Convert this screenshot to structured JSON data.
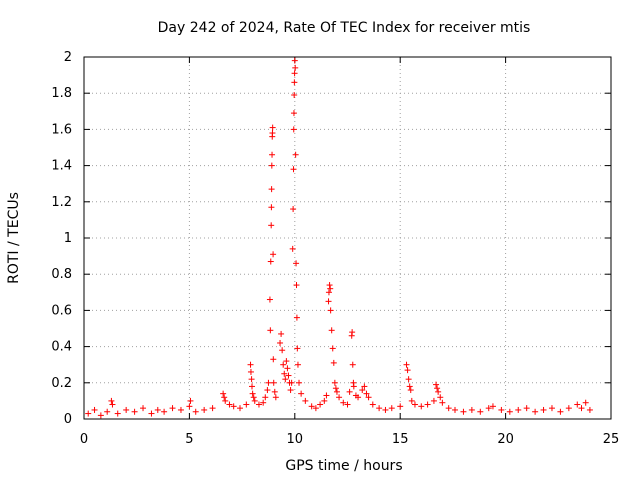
{
  "chart_data": {
    "type": "scatter",
    "title": "Day 242 of 2024, Rate Of TEC Index for receiver mtis",
    "xlabel": "GPS time / hours",
    "ylabel": "ROTI / TECUs",
    "xlim": [
      0,
      25
    ],
    "ylim": [
      0,
      2
    ],
    "xticks": [
      "0",
      "5",
      "10",
      "15",
      "20",
      "25"
    ],
    "yticks": [
      "0",
      "0.2",
      "0.4",
      "0.6",
      "0.8",
      "1",
      "1.2",
      "1.4",
      "1.6",
      "1.8",
      "2"
    ],
    "grid": true,
    "marker": "plus",
    "marker_color": "#ff0000",
    "series": [
      {
        "points": [
          [
            0.2,
            0.03
          ],
          [
            0.5,
            0.05
          ],
          [
            0.8,
            0.02
          ],
          [
            1.1,
            0.04
          ],
          [
            1.3,
            0.1
          ],
          [
            1.35,
            0.08
          ],
          [
            1.6,
            0.03
          ],
          [
            2.0,
            0.05
          ],
          [
            2.4,
            0.04
          ],
          [
            2.8,
            0.06
          ],
          [
            3.2,
            0.03
          ],
          [
            3.5,
            0.05
          ],
          [
            3.8,
            0.04
          ],
          [
            4.2,
            0.06
          ],
          [
            4.6,
            0.05
          ],
          [
            5.0,
            0.07
          ],
          [
            5.05,
            0.1
          ],
          [
            5.3,
            0.04
          ],
          [
            5.7,
            0.05
          ],
          [
            6.1,
            0.06
          ],
          [
            6.6,
            0.14
          ],
          [
            6.65,
            0.12
          ],
          [
            6.7,
            0.1
          ],
          [
            6.9,
            0.08
          ],
          [
            7.1,
            0.07
          ],
          [
            7.4,
            0.06
          ],
          [
            7.7,
            0.08
          ],
          [
            7.9,
            0.3
          ],
          [
            7.92,
            0.26
          ],
          [
            7.95,
            0.22
          ],
          [
            7.97,
            0.18
          ],
          [
            8.0,
            0.14
          ],
          [
            8.05,
            0.12
          ],
          [
            8.1,
            0.1
          ],
          [
            8.3,
            0.08
          ],
          [
            8.5,
            0.09
          ],
          [
            8.6,
            0.12
          ],
          [
            8.7,
            0.16
          ],
          [
            8.75,
            0.2
          ],
          [
            8.82,
            0.66
          ],
          [
            8.84,
            0.49
          ],
          [
            8.86,
            0.87
          ],
          [
            8.88,
            1.07
          ],
          [
            8.89,
            1.17
          ],
          [
            8.9,
            1.27
          ],
          [
            8.91,
            1.4
          ],
          [
            8.92,
            1.46
          ],
          [
            8.93,
            1.56
          ],
          [
            8.94,
            1.58
          ],
          [
            8.95,
            1.61
          ],
          [
            8.97,
            0.91
          ],
          [
            8.98,
            0.33
          ],
          [
            9.0,
            0.2
          ],
          [
            9.05,
            0.15
          ],
          [
            9.1,
            0.12
          ],
          [
            9.3,
            0.42
          ],
          [
            9.35,
            0.47
          ],
          [
            9.4,
            0.38
          ],
          [
            9.45,
            0.3
          ],
          [
            9.5,
            0.25
          ],
          [
            9.55,
            0.22
          ],
          [
            9.6,
            0.32
          ],
          [
            9.65,
            0.28
          ],
          [
            9.7,
            0.24
          ],
          [
            9.75,
            0.2
          ],
          [
            9.8,
            0.16
          ],
          [
            9.85,
            0.2
          ],
          [
            9.9,
            0.94
          ],
          [
            9.92,
            1.16
          ],
          [
            9.94,
            1.38
          ],
          [
            9.95,
            1.6
          ],
          [
            9.96,
            1.69
          ],
          [
            9.97,
            1.79
          ],
          [
            9.98,
            1.86
          ],
          [
            9.99,
            1.91
          ],
          [
            10.0,
            1.98
          ],
          [
            10.02,
            1.94
          ],
          [
            10.04,
            1.46
          ],
          [
            10.06,
            0.86
          ],
          [
            10.08,
            0.74
          ],
          [
            10.1,
            0.56
          ],
          [
            10.12,
            0.39
          ],
          [
            10.15,
            0.3
          ],
          [
            10.2,
            0.2
          ],
          [
            10.3,
            0.14
          ],
          [
            10.5,
            0.1
          ],
          [
            10.8,
            0.07
          ],
          [
            11.0,
            0.06
          ],
          [
            11.2,
            0.08
          ],
          [
            11.4,
            0.1
          ],
          [
            11.5,
            0.13
          ],
          [
            11.6,
            0.65
          ],
          [
            11.62,
            0.7
          ],
          [
            11.65,
            0.74
          ],
          [
            11.68,
            0.72
          ],
          [
            11.7,
            0.6
          ],
          [
            11.75,
            0.49
          ],
          [
            11.8,
            0.39
          ],
          [
            11.85,
            0.31
          ],
          [
            11.9,
            0.2
          ],
          [
            11.95,
            0.17
          ],
          [
            12.0,
            0.15
          ],
          [
            12.1,
            0.12
          ],
          [
            12.3,
            0.09
          ],
          [
            12.5,
            0.08
          ],
          [
            12.6,
            0.15
          ],
          [
            12.7,
            0.46
          ],
          [
            12.72,
            0.48
          ],
          [
            12.75,
            0.3
          ],
          [
            12.78,
            0.2
          ],
          [
            12.8,
            0.18
          ],
          [
            12.9,
            0.13
          ],
          [
            13.0,
            0.12
          ],
          [
            13.2,
            0.16
          ],
          [
            13.3,
            0.18
          ],
          [
            13.4,
            0.14
          ],
          [
            13.5,
            0.12
          ],
          [
            13.7,
            0.08
          ],
          [
            14.0,
            0.06
          ],
          [
            14.3,
            0.05
          ],
          [
            14.6,
            0.06
          ],
          [
            15.0,
            0.07
          ],
          [
            15.3,
            0.3
          ],
          [
            15.35,
            0.27
          ],
          [
            15.4,
            0.22
          ],
          [
            15.45,
            0.18
          ],
          [
            15.5,
            0.16
          ],
          [
            15.55,
            0.1
          ],
          [
            15.7,
            0.08
          ],
          [
            16.0,
            0.07
          ],
          [
            16.3,
            0.08
          ],
          [
            16.6,
            0.1
          ],
          [
            16.7,
            0.19
          ],
          [
            16.75,
            0.17
          ],
          [
            16.8,
            0.15
          ],
          [
            16.9,
            0.12
          ],
          [
            17.0,
            0.09
          ],
          [
            17.3,
            0.06
          ],
          [
            17.6,
            0.05
          ],
          [
            18.0,
            0.04
          ],
          [
            18.4,
            0.05
          ],
          [
            18.8,
            0.04
          ],
          [
            19.2,
            0.06
          ],
          [
            19.4,
            0.07
          ],
          [
            19.8,
            0.05
          ],
          [
            20.2,
            0.04
          ],
          [
            20.6,
            0.05
          ],
          [
            21.0,
            0.06
          ],
          [
            21.4,
            0.04
          ],
          [
            21.8,
            0.05
          ],
          [
            22.2,
            0.06
          ],
          [
            22.6,
            0.04
          ],
          [
            23.0,
            0.06
          ],
          [
            23.4,
            0.08
          ],
          [
            23.6,
            0.06
          ],
          [
            23.8,
            0.09
          ],
          [
            24.0,
            0.05
          ]
        ]
      }
    ]
  }
}
